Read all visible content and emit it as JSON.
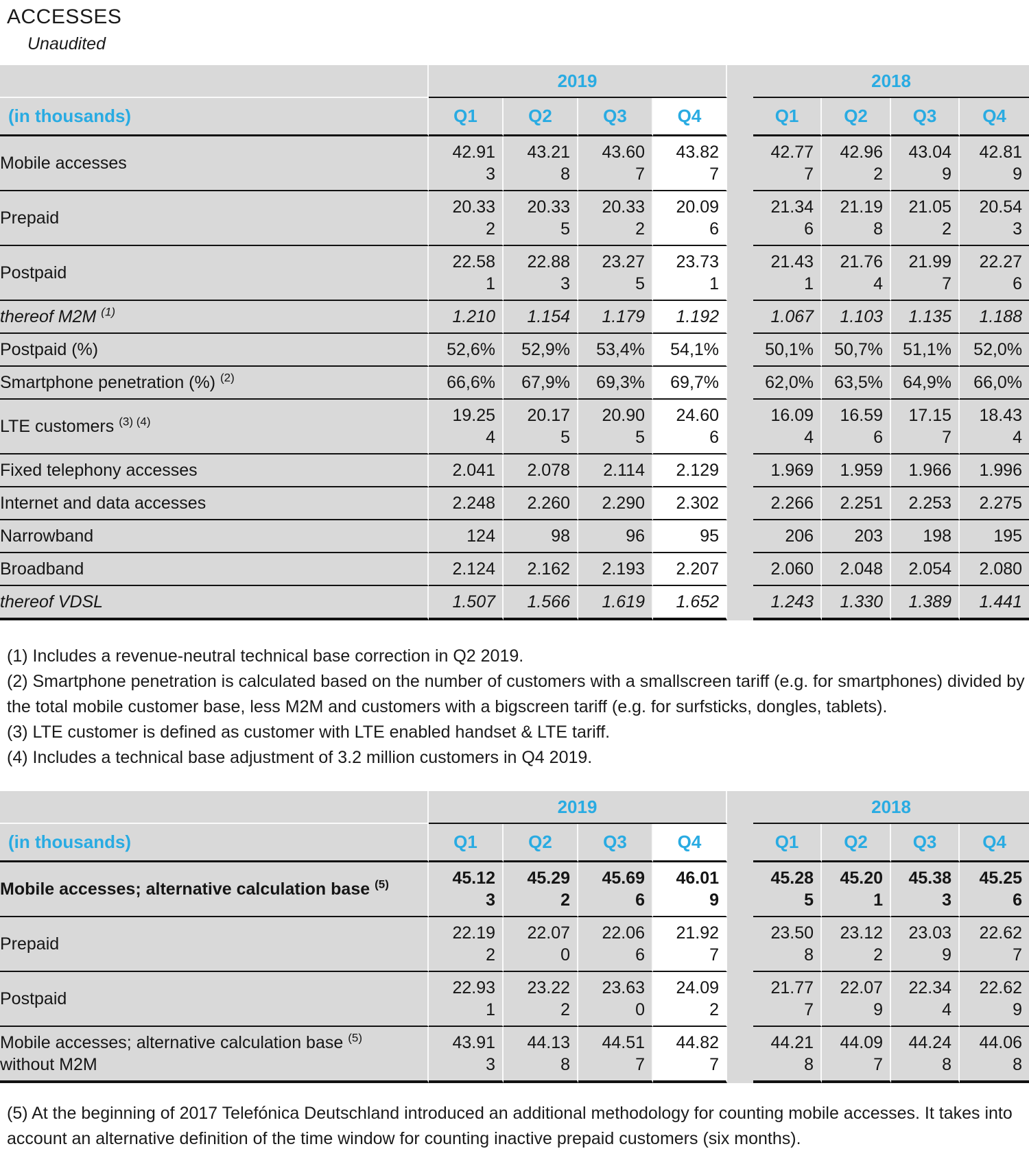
{
  "page": {
    "title": "ACCESSES",
    "subtitle": "Unaudited"
  },
  "colors": {
    "accent_blue": "#29ABE2",
    "row_gray": "#D9D9D9",
    "highlight_white": "#FFFFFF",
    "line_black": "#111111"
  },
  "tables": [
    {
      "name": "accesses",
      "unit_label": "(in thousands)",
      "year_groups": [
        "2019",
        "2018"
      ],
      "quarters": [
        "Q1",
        "Q2",
        "Q3",
        "Q4"
      ],
      "highlighted_column": "2019 Q4",
      "rows": [
        {
          "label": "Mobile accesses",
          "sup": "",
          "indent": 0,
          "style": "normal",
          "y2019": [
            "42.913",
            "43.218",
            "43.607",
            "43.827"
          ],
          "y2018": [
            "42.777",
            "42.962",
            "43.049",
            "42.819"
          ]
        },
        {
          "label": "Prepaid",
          "sup": "",
          "indent": 1,
          "style": "normal",
          "y2019": [
            "20.332",
            "20.335",
            "20.332",
            "20.096"
          ],
          "y2018": [
            "21.346",
            "21.198",
            "21.052",
            "20.543"
          ]
        },
        {
          "label": "Postpaid",
          "sup": "",
          "indent": 1,
          "style": "normal",
          "y2019": [
            "22.581",
            "22.883",
            "23.275",
            "23.731"
          ],
          "y2018": [
            "21.431",
            "21.764",
            "21.997",
            "22.276"
          ]
        },
        {
          "label": "thereof M2M",
          "sup": "(1)",
          "indent": 2,
          "style": "italic",
          "y2019": [
            "1.210",
            "1.154",
            "1.179",
            "1.192"
          ],
          "y2018": [
            "1.067",
            "1.103",
            "1.135",
            "1.188"
          ]
        },
        {
          "label": "Postpaid (%)",
          "sup": "",
          "indent": 1,
          "style": "normal",
          "y2019": [
            "52,6%",
            "52,9%",
            "53,4%",
            "54,1%"
          ],
          "y2018": [
            "50,1%",
            "50,7%",
            "51,1%",
            "52,0%"
          ]
        },
        {
          "label": "Smartphone penetration (%)",
          "sup": "(2)",
          "indent": 1,
          "style": "normal",
          "y2019": [
            "66,6%",
            "67,9%",
            "69,3%",
            "69,7%"
          ],
          "y2018": [
            "62,0%",
            "63,5%",
            "64,9%",
            "66,0%"
          ]
        },
        {
          "label": "LTE customers",
          "sup": "(3) (4)",
          "indent": 1,
          "style": "normal",
          "y2019": [
            "19.254",
            "20.175",
            "20.905",
            "24.606"
          ],
          "y2018": [
            "16.094",
            "16.596",
            "17.157",
            "18.434"
          ]
        },
        {
          "label": "Fixed telephony accesses",
          "sup": "",
          "indent": 0,
          "style": "normal",
          "y2019": [
            "2.041",
            "2.078",
            "2.114",
            "2.129"
          ],
          "y2018": [
            "1.969",
            "1.959",
            "1.966",
            "1.996"
          ]
        },
        {
          "label": "Internet and data accesses",
          "sup": "",
          "indent": 0,
          "style": "normal",
          "y2019": [
            "2.248",
            "2.260",
            "2.290",
            "2.302"
          ],
          "y2018": [
            "2.266",
            "2.251",
            "2.253",
            "2.275"
          ]
        },
        {
          "label": "Narrowband",
          "sup": "",
          "indent": 1,
          "style": "normal",
          "y2019": [
            "124",
            "98",
            "96",
            "95"
          ],
          "y2018": [
            "206",
            "203",
            "198",
            "195"
          ]
        },
        {
          "label": "Broadband",
          "sup": "",
          "indent": 1,
          "style": "normal",
          "y2019": [
            "2.124",
            "2.162",
            "2.193",
            "2.207"
          ],
          "y2018": [
            "2.060",
            "2.048",
            "2.054",
            "2.080"
          ]
        },
        {
          "label": "thereof VDSL",
          "sup": "",
          "indent": 2,
          "style": "italic",
          "y2019": [
            "1.507",
            "1.566",
            "1.619",
            "1.652"
          ],
          "y2018": [
            "1.243",
            "1.330",
            "1.389",
            "1.441"
          ]
        }
      ]
    },
    {
      "name": "alternative-calculation-base",
      "unit_label": "(in thousands)",
      "year_groups": [
        "2019",
        "2018"
      ],
      "quarters": [
        "Q1",
        "Q2",
        "Q3",
        "Q4"
      ],
      "highlighted_column": "2019 Q4",
      "rows": [
        {
          "label": "Mobile accesses; alternative calculation base",
          "sup": "(5)",
          "indent": 0,
          "style": "bold",
          "y2019": [
            "45.123",
            "45.292",
            "45.696",
            "46.019"
          ],
          "y2018": [
            "45.285",
            "45.201",
            "45.383",
            "45.256"
          ]
        },
        {
          "label": "Prepaid",
          "sup": "",
          "indent": 1,
          "style": "normal",
          "y2019": [
            "22.192",
            "22.070",
            "22.066",
            "21.927"
          ],
          "y2018": [
            "23.508",
            "23.122",
            "23.039",
            "22.627"
          ]
        },
        {
          "label": "Postpaid",
          "sup": "",
          "indent": 1,
          "style": "normal",
          "y2019": [
            "22.931",
            "23.222",
            "23.630",
            "24.092"
          ],
          "y2018": [
            "21.777",
            "22.079",
            "22.344",
            "22.629"
          ]
        },
        {
          "label": "Mobile accesses; alternative calculation base",
          "sup": "(5)",
          "label2": "without M2M",
          "indent": 0,
          "style": "normal",
          "y2019": [
            "43.913",
            "44.138",
            "44.517",
            "44.827"
          ],
          "y2018": [
            "44.218",
            "44.097",
            "44.248",
            "44.068"
          ]
        }
      ]
    }
  ],
  "footnotes1": [
    "(1) Includes a revenue-neutral technical base correction in Q2 2019.",
    "(2) Smartphone penetration is calculated based on the number of customers with a smallscreen tariff (e.g. for smartphones) divided by the total mobile customer base, less M2M and customers with a bigscreen tariff (e.g. for surfsticks, dongles, tablets).",
    "(3) LTE customer is defined as customer with LTE enabled handset & LTE tariff.",
    "(4) Includes a technical base adjustment of 3.2 million customers in Q4 2019."
  ],
  "footnotes2": [
    "(5) At the beginning of 2017 Telefónica Deutschland introduced an additional methodology for counting mobile accesses. It takes into account an alternative definition of the time window for counting inactive prepaid customers (six months)."
  ]
}
